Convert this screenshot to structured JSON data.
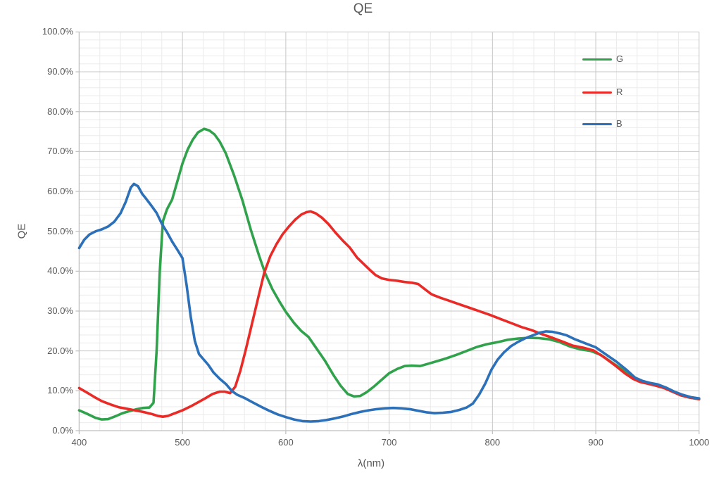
{
  "colors": {
    "green_series": "#31a24c",
    "red_series": "#ea2a26",
    "blue_series": "#2b70b8",
    "text": "#595959",
    "major_grid": "#c7c7c7",
    "minor_grid": "#ebebeb",
    "axis_line": "#bfbfbf",
    "background": "#ffffff"
  },
  "chart_data": {
    "type": "line",
    "title": "QE",
    "xlabel": "λ(nm)",
    "ylabel": "QE",
    "xlim": [
      400,
      1000
    ],
    "ylim_percent": [
      0,
      100
    ],
    "x_major_ticks": [
      400,
      500,
      600,
      700,
      800,
      900,
      1000
    ],
    "x_minor_step_nm": 20,
    "y_major_step_percent": 10,
    "y_minor_step_percent": 2,
    "y_tick_labels": [
      "0.0%",
      "10.0%",
      "20.0%",
      "30.0%",
      "40.0%",
      "50.0%",
      "60.0%",
      "70.0%",
      "80.0%",
      "90.0%",
      "100.0%"
    ],
    "grid": true,
    "legend_position": "top-right-inside",
    "legend": [
      {
        "name": "G",
        "color": "#31a24c"
      },
      {
        "name": "R",
        "color": "#ea2a26"
      },
      {
        "name": "B",
        "color": "#2b70b8"
      }
    ],
    "series": [
      {
        "name": "G",
        "color": "#31a24c",
        "points_lambda_percent": [
          [
            400,
            5.1
          ],
          [
            408,
            4.2
          ],
          [
            416,
            3.2
          ],
          [
            422,
            2.8
          ],
          [
            428,
            2.9
          ],
          [
            435,
            3.6
          ],
          [
            442,
            4.4
          ],
          [
            450,
            5.0
          ],
          [
            456,
            5.4
          ],
          [
            462,
            5.7
          ],
          [
            468,
            5.8
          ],
          [
            472,
            7.0
          ],
          [
            475,
            20.0
          ],
          [
            478,
            40.0
          ],
          [
            481,
            52.5
          ],
          [
            485,
            55.5
          ],
          [
            490,
            58.0
          ],
          [
            495,
            62.5
          ],
          [
            500,
            67.0
          ],
          [
            505,
            70.5
          ],
          [
            510,
            73.0
          ],
          [
            515,
            74.8
          ],
          [
            521,
            75.7
          ],
          [
            526,
            75.3
          ],
          [
            531,
            74.3
          ],
          [
            536,
            72.5
          ],
          [
            542,
            69.5
          ],
          [
            550,
            64.0
          ],
          [
            558,
            57.8
          ],
          [
            566,
            50.5
          ],
          [
            574,
            44.0
          ],
          [
            580,
            39.5
          ],
          [
            587,
            35.5
          ],
          [
            594,
            32.3
          ],
          [
            600,
            29.8
          ],
          [
            608,
            27.0
          ],
          [
            615,
            25.0
          ],
          [
            622,
            23.5
          ],
          [
            630,
            20.5
          ],
          [
            638,
            17.5
          ],
          [
            646,
            14.0
          ],
          [
            653,
            11.3
          ],
          [
            660,
            9.2
          ],
          [
            666,
            8.6
          ],
          [
            672,
            8.7
          ],
          [
            678,
            9.6
          ],
          [
            685,
            11.0
          ],
          [
            692,
            12.6
          ],
          [
            700,
            14.4
          ],
          [
            708,
            15.5
          ],
          [
            715,
            16.2
          ],
          [
            722,
            16.3
          ],
          [
            730,
            16.2
          ],
          [
            738,
            16.8
          ],
          [
            746,
            17.4
          ],
          [
            755,
            18.1
          ],
          [
            765,
            19.0
          ],
          [
            775,
            20.0
          ],
          [
            785,
            21.0
          ],
          [
            795,
            21.7
          ],
          [
            805,
            22.2
          ],
          [
            815,
            22.8
          ],
          [
            825,
            23.1
          ],
          [
            835,
            23.3
          ],
          [
            845,
            23.2
          ],
          [
            855,
            22.9
          ],
          [
            865,
            22.2
          ],
          [
            875,
            21.1
          ],
          [
            885,
            20.4
          ],
          [
            895,
            20.0
          ],
          [
            905,
            19.0
          ],
          [
            915,
            17.2
          ],
          [
            925,
            15.5
          ],
          [
            935,
            13.5
          ],
          [
            943,
            12.4
          ],
          [
            950,
            11.9
          ],
          [
            958,
            11.4
          ],
          [
            966,
            10.8
          ],
          [
            974,
            9.9
          ],
          [
            982,
            8.9
          ],
          [
            991,
            8.3
          ],
          [
            1000,
            7.9
          ]
        ]
      },
      {
        "name": "R",
        "color": "#ea2a26",
        "points_lambda_percent": [
          [
            400,
            10.7
          ],
          [
            408,
            9.5
          ],
          [
            415,
            8.4
          ],
          [
            422,
            7.4
          ],
          [
            430,
            6.6
          ],
          [
            438,
            5.9
          ],
          [
            446,
            5.5
          ],
          [
            454,
            5.1
          ],
          [
            462,
            4.7
          ],
          [
            470,
            4.2
          ],
          [
            476,
            3.7
          ],
          [
            481,
            3.5
          ],
          [
            486,
            3.7
          ],
          [
            492,
            4.3
          ],
          [
            500,
            5.1
          ],
          [
            508,
            6.1
          ],
          [
            515,
            7.1
          ],
          [
            522,
            8.1
          ],
          [
            529,
            9.2
          ],
          [
            536,
            9.8
          ],
          [
            541,
            9.8
          ],
          [
            546,
            9.4
          ],
          [
            551,
            11.0
          ],
          [
            556,
            15.0
          ],
          [
            561,
            20.0
          ],
          [
            567,
            26.5
          ],
          [
            573,
            33.0
          ],
          [
            579,
            39.5
          ],
          [
            585,
            43.8
          ],
          [
            591,
            46.8
          ],
          [
            597,
            49.3
          ],
          [
            603,
            51.2
          ],
          [
            609,
            52.9
          ],
          [
            615,
            54.2
          ],
          [
            620,
            54.8
          ],
          [
            624,
            55.0
          ],
          [
            629,
            54.5
          ],
          [
            635,
            53.4
          ],
          [
            641,
            51.9
          ],
          [
            648,
            49.7
          ],
          [
            655,
            47.7
          ],
          [
            662,
            45.9
          ],
          [
            669,
            43.4
          ],
          [
            675,
            41.9
          ],
          [
            681,
            40.4
          ],
          [
            687,
            39.0
          ],
          [
            693,
            38.2
          ],
          [
            700,
            37.8
          ],
          [
            708,
            37.6
          ],
          [
            715,
            37.3
          ],
          [
            722,
            37.1
          ],
          [
            728,
            36.8
          ],
          [
            734,
            35.6
          ],
          [
            741,
            34.2
          ],
          [
            749,
            33.4
          ],
          [
            758,
            32.6
          ],
          [
            768,
            31.7
          ],
          [
            778,
            30.8
          ],
          [
            788,
            29.9
          ],
          [
            798,
            29.0
          ],
          [
            808,
            28.0
          ],
          [
            818,
            27.0
          ],
          [
            828,
            26.0
          ],
          [
            838,
            25.2
          ],
          [
            848,
            24.2
          ],
          [
            858,
            23.3
          ],
          [
            868,
            22.3
          ],
          [
            878,
            21.3
          ],
          [
            888,
            20.8
          ],
          [
            898,
            20.1
          ],
          [
            908,
            18.4
          ],
          [
            918,
            16.5
          ],
          [
            928,
            14.4
          ],
          [
            936,
            13.0
          ],
          [
            943,
            12.2
          ],
          [
            950,
            11.8
          ],
          [
            958,
            11.3
          ],
          [
            966,
            10.7
          ],
          [
            974,
            9.8
          ],
          [
            982,
            8.9
          ],
          [
            991,
            8.3
          ],
          [
            1000,
            7.9
          ]
        ]
      },
      {
        "name": "B",
        "color": "#2b70b8",
        "points_lambda_percent": [
          [
            400,
            45.8
          ],
          [
            405,
            47.9
          ],
          [
            410,
            49.2
          ],
          [
            416,
            50.0
          ],
          [
            422,
            50.5
          ],
          [
            428,
            51.2
          ],
          [
            434,
            52.4
          ],
          [
            440,
            54.5
          ],
          [
            445,
            57.3
          ],
          [
            450,
            61.0
          ],
          [
            453,
            61.9
          ],
          [
            457,
            61.3
          ],
          [
            461,
            59.4
          ],
          [
            465,
            58.1
          ],
          [
            470,
            56.4
          ],
          [
            475,
            54.6
          ],
          [
            480,
            51.9
          ],
          [
            485,
            49.8
          ],
          [
            490,
            47.4
          ],
          [
            495,
            45.4
          ],
          [
            500,
            43.3
          ],
          [
            504,
            36.5
          ],
          [
            508,
            28.5
          ],
          [
            512,
            22.5
          ],
          [
            516,
            19.2
          ],
          [
            520,
            18.0
          ],
          [
            525,
            16.5
          ],
          [
            530,
            14.6
          ],
          [
            536,
            13.0
          ],
          [
            542,
            11.7
          ],
          [
            548,
            9.9
          ],
          [
            553,
            9.0
          ],
          [
            560,
            8.2
          ],
          [
            568,
            7.1
          ],
          [
            576,
            6.0
          ],
          [
            584,
            5.0
          ],
          [
            592,
            4.1
          ],
          [
            600,
            3.4
          ],
          [
            608,
            2.8
          ],
          [
            616,
            2.4
          ],
          [
            624,
            2.3
          ],
          [
            632,
            2.4
          ],
          [
            640,
            2.7
          ],
          [
            648,
            3.1
          ],
          [
            656,
            3.6
          ],
          [
            664,
            4.2
          ],
          [
            672,
            4.7
          ],
          [
            680,
            5.1
          ],
          [
            688,
            5.4
          ],
          [
            696,
            5.6
          ],
          [
            704,
            5.7
          ],
          [
            712,
            5.6
          ],
          [
            720,
            5.4
          ],
          [
            728,
            5.0
          ],
          [
            736,
            4.6
          ],
          [
            744,
            4.4
          ],
          [
            752,
            4.5
          ],
          [
            760,
            4.7
          ],
          [
            768,
            5.2
          ],
          [
            775,
            5.8
          ],
          [
            781,
            6.8
          ],
          [
            787,
            9.0
          ],
          [
            793,
            11.8
          ],
          [
            799,
            15.3
          ],
          [
            805,
            17.8
          ],
          [
            811,
            19.6
          ],
          [
            818,
            21.2
          ],
          [
            825,
            22.3
          ],
          [
            832,
            23.2
          ],
          [
            839,
            23.9
          ],
          [
            846,
            24.6
          ],
          [
            852,
            24.9
          ],
          [
            858,
            24.8
          ],
          [
            865,
            24.4
          ],
          [
            872,
            23.9
          ],
          [
            880,
            22.9
          ],
          [
            890,
            21.9
          ],
          [
            900,
            20.9
          ],
          [
            910,
            19.1
          ],
          [
            920,
            17.3
          ],
          [
            930,
            15.2
          ],
          [
            938,
            13.3
          ],
          [
            945,
            12.5
          ],
          [
            952,
            12.0
          ],
          [
            960,
            11.6
          ],
          [
            968,
            10.8
          ],
          [
            976,
            9.8
          ],
          [
            984,
            9.0
          ],
          [
            992,
            8.4
          ],
          [
            1000,
            8.1
          ]
        ]
      }
    ]
  }
}
